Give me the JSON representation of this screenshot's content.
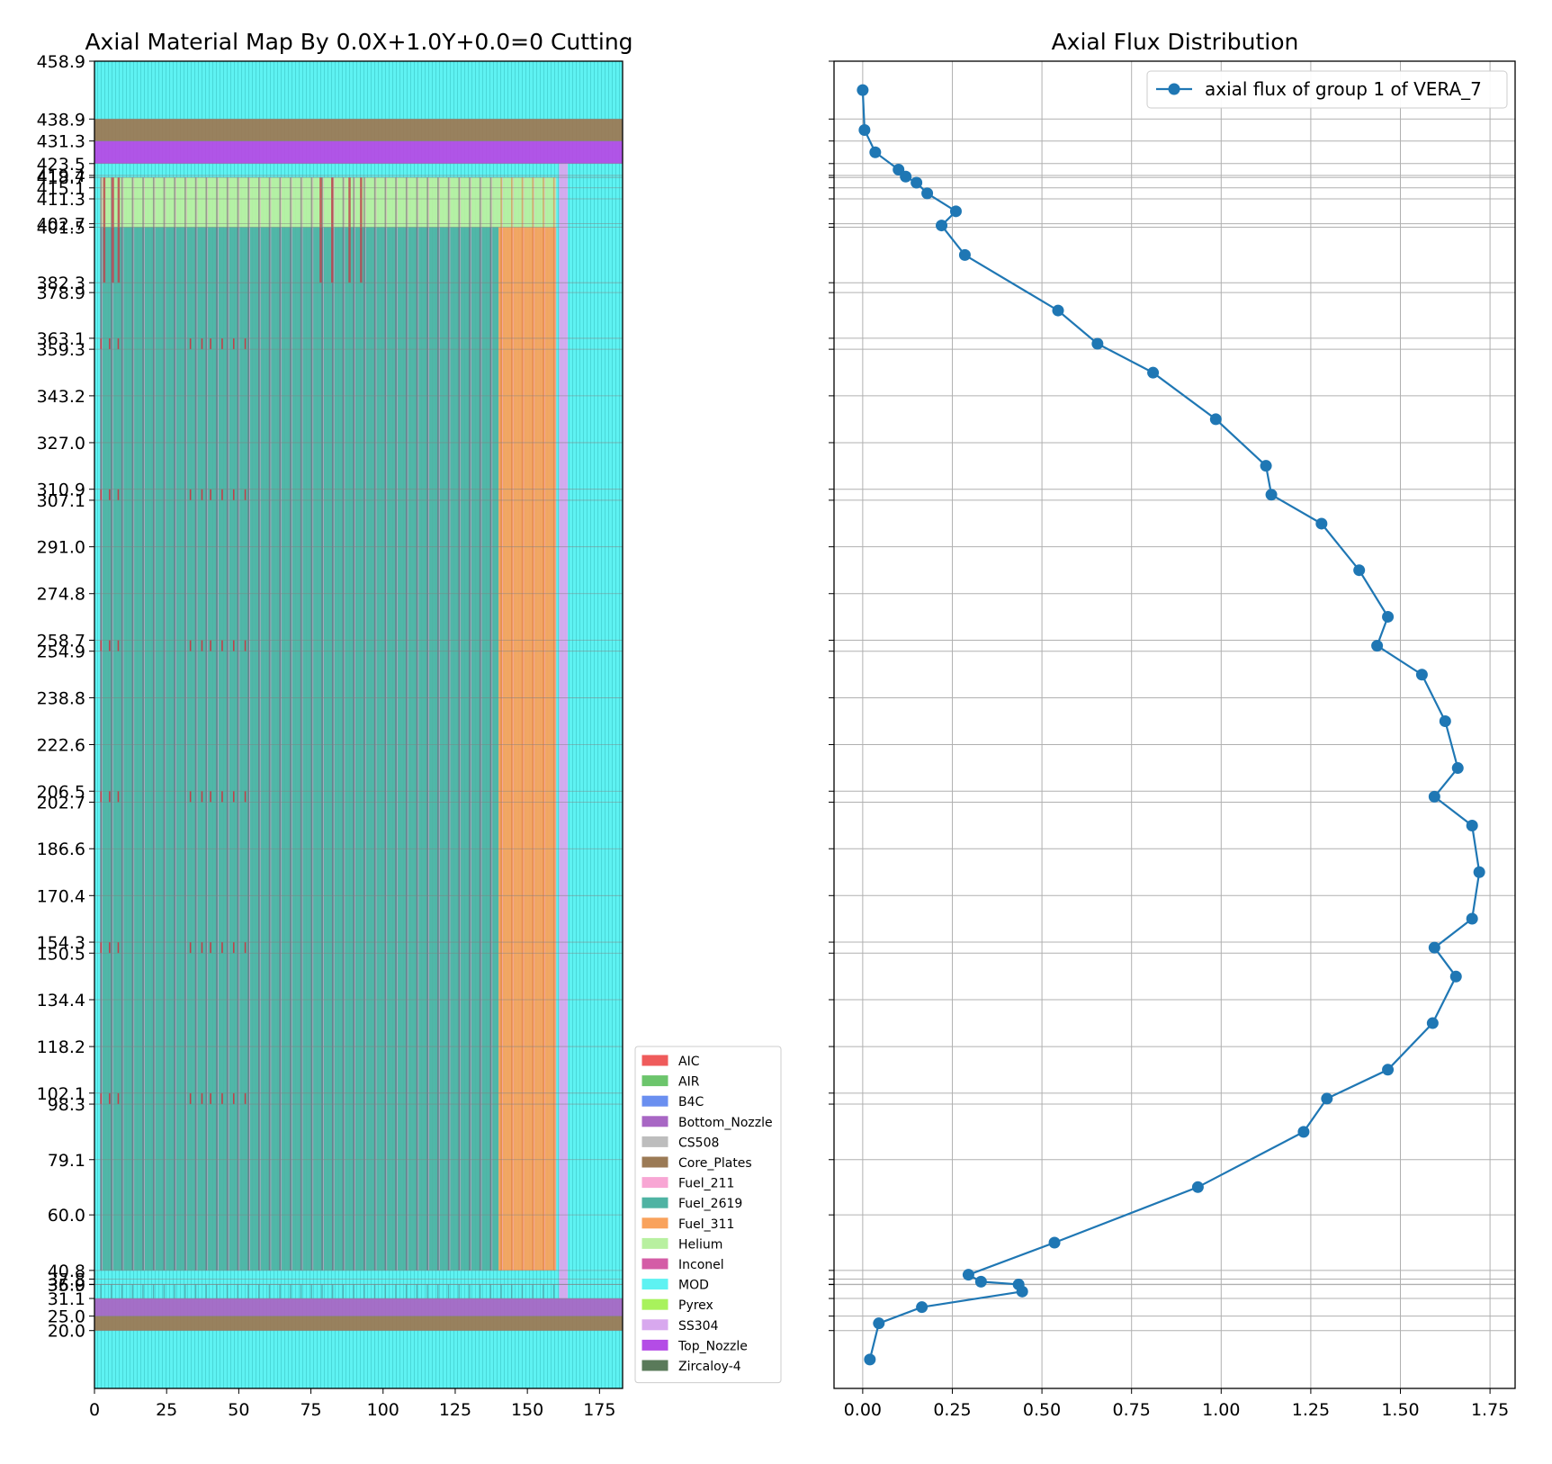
{
  "chart_data": [
    {
      "type": "material_map",
      "title": "Axial Material Map By 0.0X+1.0Y+0.0=0 Cutting",
      "xlabel": "",
      "ylabel": "",
      "xlim": [
        0,
        183
      ],
      "ylim": [
        0,
        458.9
      ],
      "xticks": [
        0,
        25,
        50,
        75,
        100,
        125,
        150,
        175
      ],
      "yticks": [
        458.9,
        438.9,
        431.3,
        423.5,
        419.4,
        418.7,
        415.1,
        411.3,
        402.7,
        401.5,
        382.3,
        378.9,
        363.1,
        359.3,
        343.2,
        327.0,
        310.9,
        307.1,
        291.0,
        274.8,
        258.7,
        254.9,
        238.8,
        222.6,
        206.5,
        202.7,
        186.6,
        170.4,
        154.3,
        150.5,
        134.4,
        118.2,
        102.1,
        98.3,
        79.1,
        60.0,
        40.8,
        37.8,
        36.0,
        35.9,
        31.1,
        25.0,
        20.0
      ],
      "ytick_labels": [
        "458.9",
        "438.9",
        "431.3",
        "423.5",
        "419.4",
        "418.7",
        "415.1",
        "411.3",
        "402.7",
        "401.5",
        "382.3",
        "378.9",
        "363.1",
        "359.3",
        "343.2",
        "327.0",
        "310.9",
        "307.1",
        "291.0",
        "274.8",
        "258.7",
        "254.9",
        "238.8",
        "222.6",
        "206.5",
        "202.7",
        "186.6",
        "170.4",
        "154.3",
        "150.5",
        "134.4",
        "118.2",
        "102.1",
        "98.3",
        "79.1",
        "60.0",
        "40.8",
        "37.8",
        "36.0",
        "35.9",
        "31.1",
        "25.0",
        "20.0"
      ],
      "grid": true,
      "legend_position": "outside-right-bottom",
      "legend": [
        {
          "label": "AIC",
          "color": "#ef5b5b"
        },
        {
          "label": "AIR",
          "color": "#6cc56c"
        },
        {
          "label": "B4C",
          "color": "#6a8ff0"
        },
        {
          "label": "Bottom_Nozzle",
          "color": "#a867c4"
        },
        {
          "label": "CS508",
          "color": "#bdbdbd"
        },
        {
          "label": "Core_Plates",
          "color": "#9b7a55"
        },
        {
          "label": "Fuel_211",
          "color": "#f8a6d4"
        },
        {
          "label": "Fuel_2619",
          "color": "#4fb3a3"
        },
        {
          "label": "Fuel_311",
          "color": "#f9a25c"
        },
        {
          "label": "Helium",
          "color": "#b8f0a0"
        },
        {
          "label": "Inconel",
          "color": "#d45ca6"
        },
        {
          "label": "MOD",
          "color": "#5ef2f2"
        },
        {
          "label": "Pyrex",
          "color": "#a8f25c"
        },
        {
          "label": "SS304",
          "color": "#d8a8ee"
        },
        {
          "label": "Top_Nozzle",
          "color": "#b44ce6"
        },
        {
          "label": "Zircaloy-4",
          "color": "#5a7a5a"
        }
      ],
      "regions": [
        {
          "material": "MOD",
          "x0": 0,
          "x1": 183,
          "y0": 0,
          "y1": 458.9
        },
        {
          "material": "Core_Plates",
          "x0": 0,
          "x1": 183,
          "y0": 431.3,
          "y1": 438.9
        },
        {
          "material": "Top_Nozzle",
          "x0": 0,
          "x1": 183,
          "y0": 423.5,
          "y1": 431.3
        },
        {
          "material": "Core_Plates",
          "x0": 0,
          "x1": 183,
          "y0": 20.0,
          "y1": 25.0
        },
        {
          "material": "Bottom_Nozzle",
          "x0": 0,
          "x1": 183,
          "y0": 25.0,
          "y1": 31.1
        },
        {
          "material": "SS304",
          "x0": 161,
          "x1": 164,
          "y0": 31.1,
          "y1": 423.5
        },
        {
          "material": "Helium",
          "x0": 2,
          "x1": 160,
          "y0": 401.5,
          "y1": 418.7
        },
        {
          "material": "Fuel_2619",
          "x0": 2,
          "x1": 140,
          "y0": 40.8,
          "y1": 401.5
        },
        {
          "material": "Fuel_311",
          "x0": 140,
          "x1": 160,
          "y0": 40.8,
          "y1": 401.5
        }
      ]
    },
    {
      "type": "line",
      "title": "Axial Flux Distribution",
      "xlabel": "",
      "ylabel": "",
      "xlim": [
        -0.08,
        1.82
      ],
      "ylim": [
        0,
        458.9
      ],
      "xticks": [
        0.0,
        0.25,
        0.5,
        0.75,
        1.0,
        1.25,
        1.5,
        1.75
      ],
      "xtick_labels": [
        "0.00",
        "0.25",
        "0.50",
        "0.75",
        "1.00",
        "1.25",
        "1.50",
        "1.75"
      ],
      "yticks": [
        458.9,
        438.9,
        431.3,
        423.5,
        419.4,
        418.7,
        415.1,
        411.3,
        402.7,
        401.5,
        382.3,
        378.9,
        363.1,
        359.3,
        343.2,
        327.0,
        310.9,
        307.1,
        291.0,
        274.8,
        258.7,
        254.9,
        238.8,
        222.6,
        206.5,
        202.7,
        186.6,
        170.4,
        154.3,
        150.5,
        134.4,
        118.2,
        102.1,
        98.3,
        79.1,
        60.0,
        40.8,
        37.8,
        36.0,
        35.9,
        31.1,
        25.0,
        20.0
      ],
      "grid": true,
      "legend_position": "top-right",
      "series": [
        {
          "name": "axial flux of group 1 of VERA_7",
          "color": "#1f77b4",
          "points": [
            [
              0.0,
              448.9
            ],
            [
              0.005,
              435.1
            ],
            [
              0.035,
              427.4
            ],
            [
              0.1,
              421.4
            ],
            [
              0.12,
              419.0
            ],
            [
              0.15,
              416.9
            ],
            [
              0.18,
              413.2
            ],
            [
              0.26,
              407.0
            ],
            [
              0.22,
              402.1
            ],
            [
              0.285,
              391.9
            ],
            [
              0.545,
              372.7
            ],
            [
              0.655,
              361.2
            ],
            [
              0.81,
              351.2
            ],
            [
              0.985,
              335.1
            ],
            [
              1.125,
              319.0
            ],
            [
              1.14,
              309.0
            ],
            [
              1.28,
              299.0
            ],
            [
              1.385,
              282.9
            ],
            [
              1.465,
              266.8
            ],
            [
              1.435,
              256.8
            ],
            [
              1.56,
              246.8
            ],
            [
              1.625,
              230.7
            ],
            [
              1.66,
              214.5
            ],
            [
              1.595,
              204.6
            ],
            [
              1.7,
              194.6
            ],
            [
              1.72,
              178.5
            ],
            [
              1.7,
              162.4
            ],
            [
              1.595,
              152.4
            ],
            [
              1.655,
              142.4
            ],
            [
              1.59,
              126.3
            ],
            [
              1.465,
              110.2
            ],
            [
              1.295,
              100.2
            ],
            [
              1.23,
              88.7
            ],
            [
              0.935,
              69.6
            ],
            [
              0.535,
              50.4
            ],
            [
              0.295,
              39.3
            ],
            [
              0.33,
              36.9
            ],
            [
              0.435,
              35.95
            ],
            [
              0.445,
              33.5
            ],
            [
              0.165,
              28.1
            ],
            [
              0.045,
              22.5
            ],
            [
              0.02,
              10.0
            ]
          ]
        }
      ]
    }
  ]
}
